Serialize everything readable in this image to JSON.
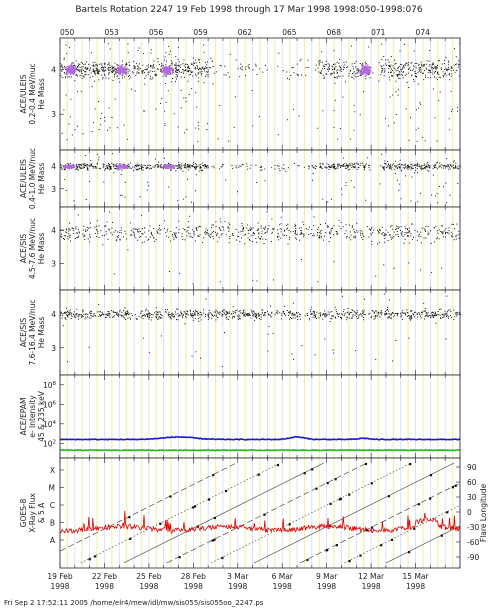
{
  "header": {
    "title": "Bartels Rotation 2247    19 Feb 1998 through 17 Mar 1998    1998:050-1998:076"
  },
  "footer": {
    "text": "Fri Sep  2 17:52:11 2005    /home/elr4/mew/idl/mw/sis055/sis055oo_2247.ps"
  },
  "chart_data": {
    "type": "scatter",
    "title": "Bartels Rotation 2247    19 Feb 1998 through 17 Mar 1998    1998:050-1998:076",
    "x_axis": {
      "type": "time",
      "range_doy": [
        50,
        77
      ],
      "ticks_doy": [
        50,
        53,
        56,
        59,
        62,
        65,
        68,
        71,
        74
      ],
      "top_labels": [
        "050",
        "053",
        "056",
        "059",
        "062",
        "065",
        "068",
        "071",
        "074"
      ],
      "bottom_labels": [
        {
          "date": "19 Feb",
          "year": "1998"
        },
        {
          "date": "22 Feb",
          "year": "1998"
        },
        {
          "date": "25 Feb",
          "year": "1998"
        },
        {
          "date": "28 Feb",
          "year": "1998"
        },
        {
          "date": "3 Mar",
          "year": "1998"
        },
        {
          "date": "6 Mar",
          "year": "1998"
        },
        {
          "date": "9 Mar",
          "year": "1998"
        },
        {
          "date": "12 Mar",
          "year": "1998"
        },
        {
          "date": "15 Mar",
          "year": "1998"
        }
      ]
    },
    "panels": [
      {
        "ylabel": [
          "ACE/ULEIS",
          "0.2-0.4 MeV/nuc",
          "He Mass"
        ],
        "yticks": [
          "4",
          "3"
        ],
        "yrange": [
          2.2,
          4.7
        ],
        "band": 4.0,
        "spread": 0.2,
        "outlier_fraction": 0.2,
        "density": 55,
        "dense_color": "#b36ae0",
        "dense_centers_doy": [
          50.7,
          54.1,
          57.2,
          70.6
        ],
        "data_gaps_doy": [
          [
            70.9,
            71.6
          ]
        ],
        "sparse_ranges_doy": [
          [
            60.0,
            67.5
          ]
        ]
      },
      {
        "ylabel": [
          "ACE/ULEIS",
          "0.4-1.0 MeV/nuc",
          "He Mass"
        ],
        "yticks": [
          "4",
          "3"
        ],
        "yrange": [
          2.2,
          4.7
        ],
        "band": 4.0,
        "spread": 0.15,
        "outlier_fraction": 0.12,
        "density": 40,
        "dense_color": "#b36ae0",
        "dense_centers_doy": [
          50.6,
          54.2,
          57.3
        ],
        "data_gaps_doy": [
          [
            70.9,
            71.6
          ]
        ],
        "sparse_ranges_doy": [
          [
            60.0,
            67.5
          ]
        ]
      },
      {
        "ylabel": [
          "ACE/SIS",
          "4.5-7.6 MeV/nuc",
          "He Mass"
        ],
        "yticks": [
          "4",
          "3"
        ],
        "yrange": [
          2.2,
          4.7
        ],
        "band": 3.95,
        "spread": 0.28,
        "outlier_fraction": 0.05,
        "density": 25,
        "dense_color": "",
        "dense_centers_doy": [],
        "data_gaps_doy": [],
        "sparse_ranges_doy": []
      },
      {
        "ylabel": [
          "ACE/SIS",
          "7.6-16.4 MeV/nuc",
          "He Mass"
        ],
        "yticks": [
          "4",
          "3"
        ],
        "yrange": [
          2.2,
          4.7
        ],
        "band": 4.0,
        "spread": 0.14,
        "outlier_fraction": 0.05,
        "density": 32,
        "dense_color": "",
        "dense_centers_doy": [],
        "data_gaps_doy": [],
        "sparse_ranges_doy": []
      }
    ],
    "epam": {
      "ylabel": [
        "ACE/EPAM",
        "e- Intensity",
        "45 & 235 keV"
      ],
      "yticks": [
        "10^8",
        "10^6",
        "10^4",
        "10^2"
      ],
      "log_range": [
        0.5,
        9
      ],
      "series": [
        {
          "color": "#1a1acc",
          "level": 2.4
        },
        {
          "color": "#22bb22",
          "level": 1.3
        }
      ]
    },
    "goes": {
      "ylabel": [
        "GOES-8",
        "X-Ray Flux",
        "& 5 A"
      ],
      "left_ticks": [
        "X",
        "M",
        "C",
        "B",
        "A"
      ],
      "right_label": "Flare Longitude",
      "right_ticks": [
        "90",
        "60",
        "30",
        "0",
        "-30",
        "-60",
        "-90"
      ],
      "flux_color": "#e00000",
      "flux_level": "B"
    }
  }
}
